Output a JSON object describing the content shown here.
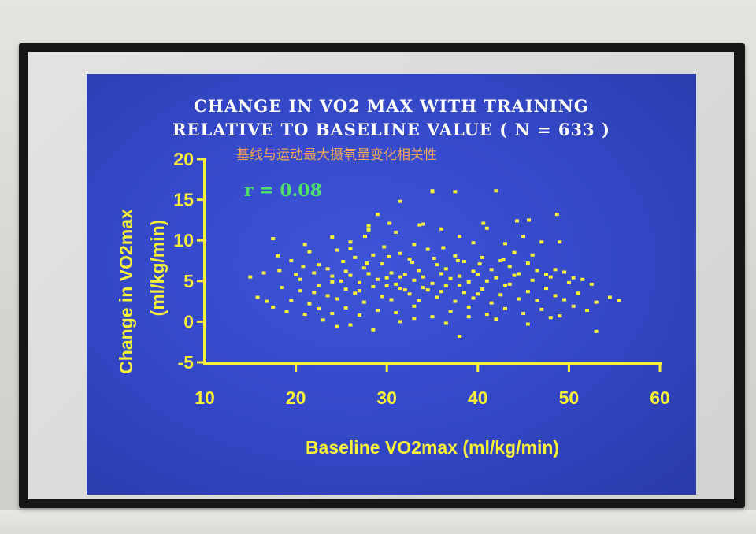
{
  "slide": {
    "title_line1": "CHANGE IN VO2 MAX WITH TRAINING",
    "title_line2": "RELATIVE TO BASELINE VALUE ( N = 633 )",
    "subtitle_cn": "基线与运动最大摄氧量变化相关性",
    "r_label": "r = 0.08"
  },
  "colors": {
    "slide_bg": "#3347c6",
    "points": "#f7f13a",
    "axis": "#f7f13a",
    "title": "#ffffff",
    "subtitle": "#f0a35a",
    "r_label": "#4fe06c"
  },
  "chart_data": {
    "type": "scatter",
    "title": "CHANGE IN VO2 MAX WITH TRAINING RELATIVE TO BASELINE VALUE ( N = 633 )",
    "xlabel": "Baseline VO2max (ml/kg/min)",
    "ylabel_line1": "Change in VO2max",
    "ylabel_line2": "(ml/kg/min)",
    "xlim": [
      10,
      60
    ],
    "ylim": [
      -5,
      20
    ],
    "xticks": [
      10,
      20,
      30,
      40,
      50,
      60
    ],
    "yticks": [
      -5,
      0,
      5,
      10,
      15,
      20
    ],
    "annotation": "r = 0.08",
    "grid": false,
    "series": [
      {
        "points": [
          [
            31.5,
            14.8
          ],
          [
            35,
            16.0
          ],
          [
            37.5,
            16.0
          ],
          [
            42,
            16.1
          ],
          [
            35,
            16.1
          ],
          [
            29,
            13.2
          ],
          [
            30.3,
            12.1
          ],
          [
            33.6,
            11.9
          ],
          [
            36,
            11.4
          ],
          [
            40.6,
            12.1
          ],
          [
            48.7,
            13.2
          ],
          [
            27.6,
            10.5
          ],
          [
            44.3,
            12.4
          ],
          [
            45.6,
            12.5
          ],
          [
            17.5,
            10.2
          ],
          [
            21,
            9.5
          ],
          [
            24,
            10.4
          ],
          [
            26,
            9.8
          ],
          [
            28,
            11.3
          ],
          [
            31,
            11.0
          ],
          [
            34,
            12.0
          ],
          [
            38,
            10.5
          ],
          [
            41,
            11.5
          ],
          [
            43,
            9.6
          ],
          [
            45,
            10.5
          ],
          [
            47,
            9.8
          ],
          [
            49,
            9.8
          ],
          [
            46,
            8.2
          ],
          [
            44,
            8.5
          ],
          [
            15,
            5.5
          ],
          [
            16.5,
            6.0
          ],
          [
            18,
            8.1
          ],
          [
            19.5,
            7.5
          ],
          [
            20.5,
            5.2
          ],
          [
            21.5,
            8.6
          ],
          [
            22.5,
            7.0
          ],
          [
            23.5,
            6.5
          ],
          [
            24.5,
            8.8
          ],
          [
            25.5,
            6.2
          ],
          [
            26.5,
            7.9
          ],
          [
            27.5,
            6.6
          ],
          [
            28.5,
            8.2
          ],
          [
            29.5,
            7.1
          ],
          [
            30.5,
            6.0
          ],
          [
            31.5,
            8.4
          ],
          [
            32.5,
            7.7
          ],
          [
            33.5,
            6.3
          ],
          [
            34.5,
            8.9
          ],
          [
            35.5,
            7.0
          ],
          [
            36.5,
            6.5
          ],
          [
            37.5,
            8.1
          ],
          [
            38.5,
            7.4
          ],
          [
            39.5,
            6.2
          ],
          [
            40.5,
            7.9
          ],
          [
            41.5,
            6.4
          ],
          [
            42.5,
            7.5
          ],
          [
            43.5,
            6.8
          ],
          [
            44.5,
            5.9
          ],
          [
            45.5,
            7.2
          ],
          [
            46.5,
            6.3
          ],
          [
            47.5,
            5.8
          ],
          [
            48.5,
            6.4
          ],
          [
            49.5,
            6.1
          ],
          [
            50.5,
            5.4
          ],
          [
            51.5,
            5.2
          ],
          [
            52.5,
            4.6
          ],
          [
            15.8,
            3.0
          ],
          [
            16.8,
            2.5
          ],
          [
            18.5,
            4.2
          ],
          [
            19.5,
            2.6
          ],
          [
            20.5,
            3.8
          ],
          [
            21.5,
            2.2
          ],
          [
            22.5,
            4.5
          ],
          [
            23.5,
            3.2
          ],
          [
            24.5,
            2.8
          ],
          [
            25.5,
            4.0
          ],
          [
            26.5,
            3.5
          ],
          [
            27.5,
            2.4
          ],
          [
            28.5,
            4.3
          ],
          [
            29.5,
            3.1
          ],
          [
            30.5,
            2.7
          ],
          [
            31.5,
            4.1
          ],
          [
            32.5,
            3.4
          ],
          [
            33.5,
            2.6
          ],
          [
            34.5,
            3.9
          ],
          [
            35.5,
            3.0
          ],
          [
            36.5,
            4.4
          ],
          [
            37.5,
            2.5
          ],
          [
            38.5,
            3.6
          ],
          [
            39.5,
            2.9
          ],
          [
            40.5,
            4.0
          ],
          [
            41.5,
            2.3
          ],
          [
            42.5,
            3.3
          ],
          [
            43.5,
            4.6
          ],
          [
            44.5,
            2.8
          ],
          [
            45.5,
            3.7
          ],
          [
            46.5,
            2.6
          ],
          [
            47.5,
            4.1
          ],
          [
            48.5,
            3.2
          ],
          [
            49.5,
            2.7
          ],
          [
            51,
            3.5
          ],
          [
            53,
            2.4
          ],
          [
            54.5,
            3.0
          ],
          [
            55.5,
            2.6
          ],
          [
            17.5,
            1.8
          ],
          [
            19,
            1.2
          ],
          [
            21,
            0.9
          ],
          [
            22.5,
            1.6
          ],
          [
            24,
            1.0
          ],
          [
            25.5,
            1.7
          ],
          [
            27,
            0.8
          ],
          [
            29,
            1.4
          ],
          [
            31,
            1.1
          ],
          [
            33,
            1.9
          ],
          [
            35,
            0.6
          ],
          [
            37,
            1.3
          ],
          [
            39,
            1.8
          ],
          [
            41,
            0.9
          ],
          [
            43,
            1.6
          ],
          [
            45,
            1.0
          ],
          [
            47,
            1.5
          ],
          [
            49,
            0.7
          ],
          [
            50.5,
            1.9
          ],
          [
            52,
            1.4
          ],
          [
            23,
            0.2
          ],
          [
            26,
            -0.4
          ],
          [
            28.5,
            -1.0
          ],
          [
            31.5,
            0.0
          ],
          [
            33,
            0.4
          ],
          [
            36.5,
            -0.2
          ],
          [
            39,
            0.6
          ],
          [
            42,
            0.3
          ],
          [
            45.5,
            -0.3
          ],
          [
            48,
            0.5
          ],
          [
            24.5,
            -0.6
          ],
          [
            38,
            -1.8
          ],
          [
            53,
            -1.2
          ],
          [
            28,
            11.8
          ],
          [
            31.5,
            5.5
          ],
          [
            25,
            5.0
          ],
          [
            27,
            4.8
          ],
          [
            29,
            5.2
          ],
          [
            31,
            4.6
          ],
          [
            33,
            5.1
          ],
          [
            35,
            4.7
          ],
          [
            37,
            5.3
          ],
          [
            39,
            4.9
          ],
          [
            41,
            5.0
          ],
          [
            43,
            4.5
          ],
          [
            20,
            5.8
          ],
          [
            22,
            6.0
          ],
          [
            24,
            5.6
          ],
          [
            26,
            5.7
          ],
          [
            28,
            5.9
          ],
          [
            30,
            5.4
          ],
          [
            32,
            5.8
          ],
          [
            34,
            5.5
          ],
          [
            36,
            5.9
          ],
          [
            38,
            5.6
          ],
          [
            40,
            5.8
          ],
          [
            42,
            5.4
          ],
          [
            44,
            5.7
          ],
          [
            46,
            5.1
          ],
          [
            48,
            5.5
          ],
          [
            50,
            4.8
          ],
          [
            26,
            9.0
          ],
          [
            29.7,
            9.2
          ],
          [
            33,
            9.5
          ],
          [
            36.2,
            9.1
          ],
          [
            39.5,
            9.7
          ],
          [
            22,
            3.6
          ],
          [
            24,
            4.9
          ],
          [
            27,
            3.8
          ],
          [
            30,
            4.4
          ],
          [
            32,
            3.9
          ],
          [
            34,
            4.2
          ],
          [
            36,
            3.7
          ],
          [
            38,
            4.5
          ],
          [
            40,
            3.4
          ],
          [
            25.2,
            7.4
          ],
          [
            27.8,
            7.2
          ],
          [
            30.2,
            8.0
          ],
          [
            32.8,
            7.3
          ],
          [
            35.2,
            7.8
          ],
          [
            37.8,
            7.5
          ],
          [
            40.2,
            7.1
          ],
          [
            42.8,
            7.6
          ],
          [
            18.2,
            6.3
          ],
          [
            20.8,
            6.8
          ]
        ]
      }
    ]
  }
}
